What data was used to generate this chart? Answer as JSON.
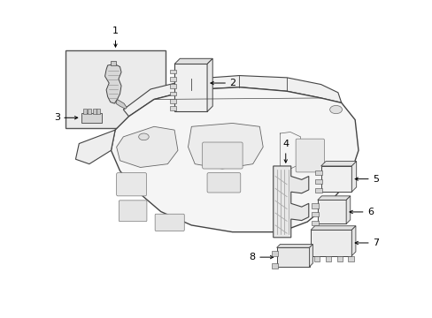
{
  "bg_color": "#ffffff",
  "line_color": "#444444",
  "fill_color": "#f8f8f8",
  "inset_fill": "#ebebeb",
  "label_color": "#000000",
  "arrow_color": "#000000",
  "gray_fill": "#e8e8e8",
  "component_fill": "#f2f2f2"
}
